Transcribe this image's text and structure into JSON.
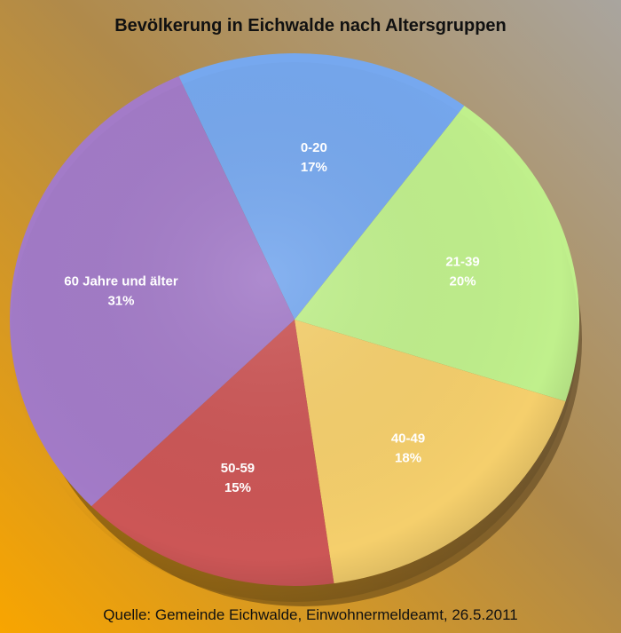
{
  "chart_data": {
    "type": "pie",
    "title": "Bevölkerung in Eichwalde nach Altersgruppen",
    "source": "Quelle: Gemeinde Eichwalde, Einwohnermeldeamt, 26.5.2011",
    "slices": [
      {
        "label": "0-20",
        "value": 17,
        "value_label": "17%",
        "color": "#76a8ef"
      },
      {
        "label": "21-39",
        "value": 20,
        "value_label": "20%",
        "color": "#c0f08c"
      },
      {
        "label": "40-49",
        "value": 18,
        "value_label": "18%",
        "color": "#f5cf6c"
      },
      {
        "label": "50-59",
        "value": 15,
        "value_label": "15%",
        "color": "#cc5656"
      },
      {
        "label": "60 Jahre und älter",
        "value": 31,
        "value_label": "31%",
        "color": "#a37bc8"
      }
    ]
  }
}
